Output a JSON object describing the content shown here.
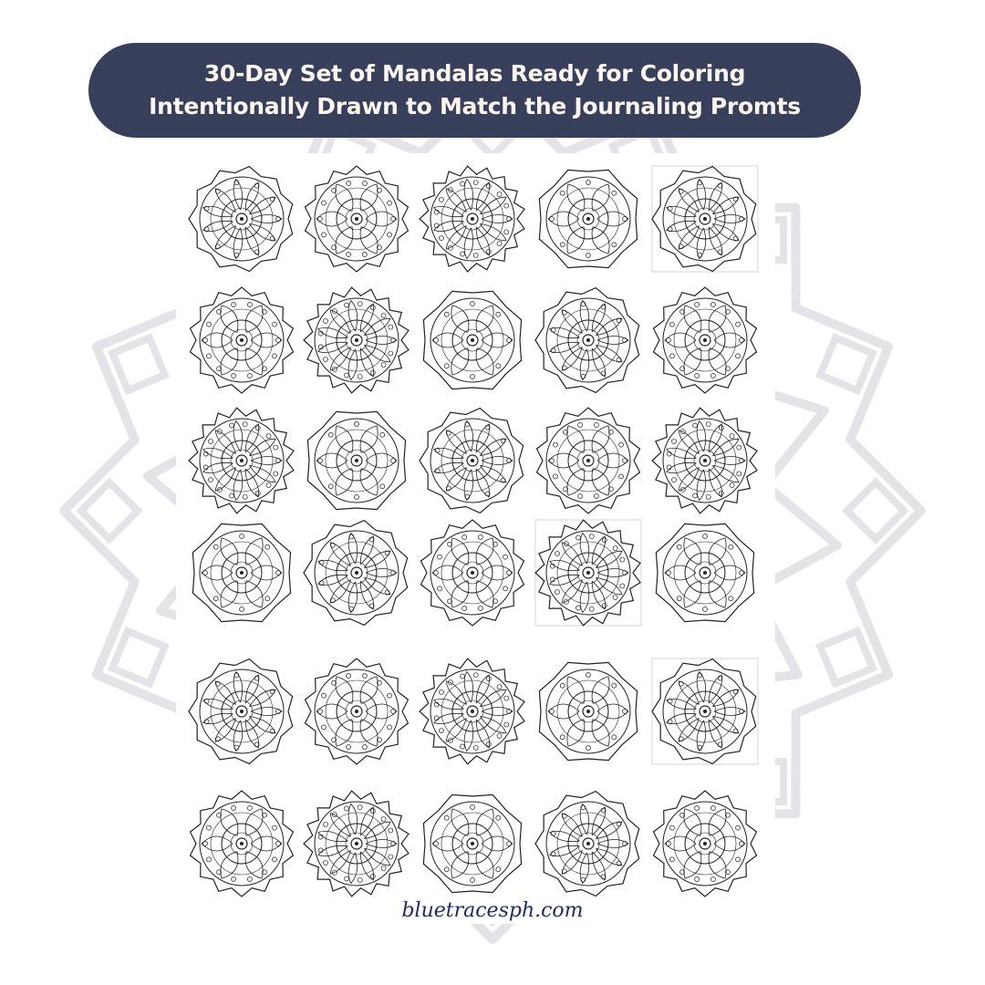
{
  "banner": {
    "line1": "30-Day Set of Mandalas Ready for Coloring",
    "line2": "Intentionally Drawn to Match the Journaling Promts",
    "background_color": "#373f5a",
    "text_color": "#fbf7f0"
  },
  "mandala_grid": {
    "count": 30,
    "columns": 5,
    "rows": 6,
    "line_color": "#222222"
  },
  "background_decoration_color": "#e4e4e8",
  "footer": {
    "website": "bluetracesph.com",
    "color": "#1f2a6b"
  }
}
